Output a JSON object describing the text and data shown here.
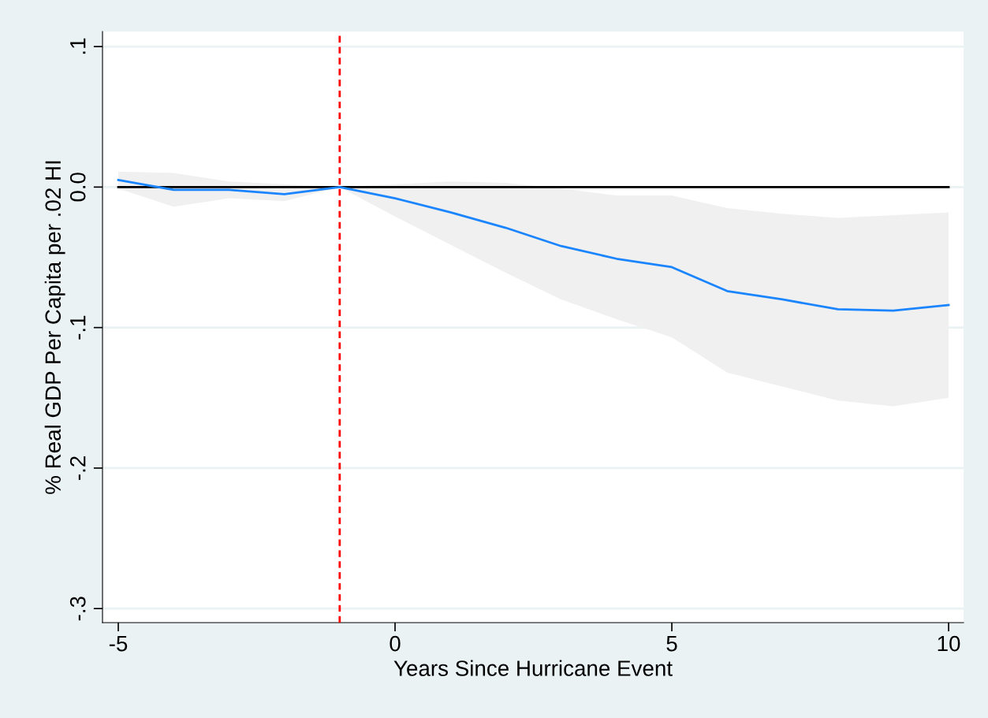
{
  "chart_data": {
    "type": "line",
    "xlabel": "Years Since Hurricane Event",
    "ylabel": "% Real GDP Per Capita per .02 HI",
    "x": [
      -5,
      -4,
      -3,
      -2,
      -1,
      0,
      1,
      2,
      3,
      4,
      5,
      6,
      7,
      8,
      9,
      10
    ],
    "series": [
      {
        "color": "#1a85ff",
        "values": [
          0.005,
          -0.002,
          -0.002,
          -0.005,
          0,
          -0.008,
          -0.018,
          -0.029,
          -0.042,
          -0.051,
          -0.057,
          -0.074,
          -0.08,
          -0.087,
          -0.088,
          -0.084
        ],
        "upper": [
          0.011,
          0.01,
          0.004,
          0.002,
          0,
          0.002,
          0.004,
          0.003,
          -0.001,
          -0.006,
          -0.006,
          -0.015,
          -0.019,
          -0.022,
          -0.02,
          -0.018
        ],
        "lower": [
          -0.001,
          -0.014,
          -0.008,
          -0.01,
          0,
          -0.021,
          -0.041,
          -0.061,
          -0.08,
          -0.094,
          -0.107,
          -0.132,
          -0.142,
          -0.152,
          -0.156,
          -0.15
        ]
      }
    ],
    "xlim": [
      -5.285,
      10.27
    ],
    "ylim": [
      -0.31,
      0.1107
    ],
    "xticks": [
      -5,
      0,
      5,
      10
    ],
    "yticks": [
      {
        "value": 0.1,
        "label": ".1"
      },
      {
        "value": 0,
        "label": "0.0"
      },
      {
        "value": -0.1,
        "label": "-.1"
      },
      {
        "value": -0.2,
        "label": "-.2"
      },
      {
        "value": -0.3,
        "label": "-.3"
      }
    ],
    "ref_lines": [
      {
        "axis": "y",
        "value": 0,
        "color": "#000000",
        "line_style": "solid"
      },
      {
        "axis": "x",
        "value": -1,
        "color": "#ff0000",
        "line_style": "dashed"
      }
    ],
    "grid": "y",
    "legend": false,
    "marker": "none",
    "line_style": "solid"
  }
}
